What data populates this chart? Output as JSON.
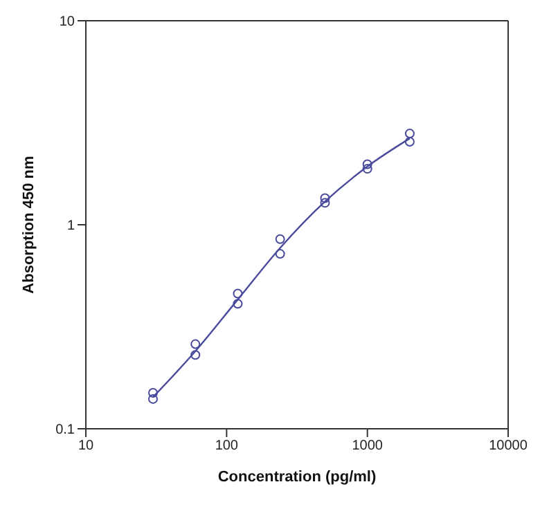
{
  "chart_data": {
    "type": "scatter",
    "xlabel": "Concentration (pg/ml)",
    "ylabel": "Absorption 450 nm",
    "log": "xy",
    "line_style": "solid",
    "xlim": [
      10,
      10000
    ],
    "xticks": [
      10,
      100,
      1000,
      10000
    ],
    "ylim": [
      0.1,
      10
    ],
    "yticks": [
      0.1,
      1,
      10
    ],
    "series": [
      {
        "marker": "circle",
        "color": "#4a4a9c",
        "x": [
          30,
          30,
          60,
          60,
          120,
          120,
          240,
          240,
          500,
          500,
          1000,
          1000,
          2000,
          2000
        ],
        "values": [
          0.15,
          0.14,
          0.26,
          0.23,
          0.46,
          0.41,
          0.85,
          0.72,
          1.35,
          1.28,
          1.98,
          1.88,
          2.8,
          2.55
        ]
      },
      {
        "type": "line",
        "marker": "none",
        "color": "#4a4a9c",
        "x": [
          30,
          60,
          120,
          240,
          500,
          1000,
          2000
        ],
        "values": [
          0.143,
          0.24,
          0.43,
          0.77,
          1.3,
          1.93,
          2.65
        ]
      }
    ]
  }
}
